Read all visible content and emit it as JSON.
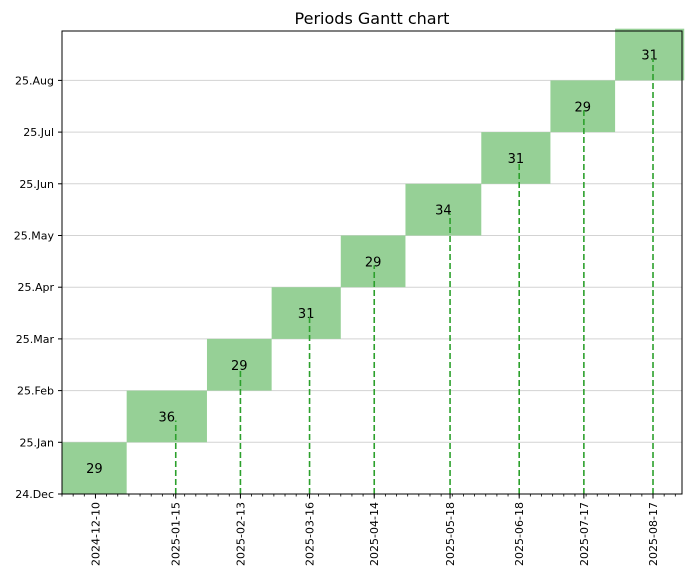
{
  "chart_data": {
    "type": "bar",
    "subtype": "gantt",
    "title": "Periods Gantt chart",
    "xlabel": "",
    "ylabel": "",
    "x_range": [
      "2024-11-25",
      "2025-08-30"
    ],
    "y_categories": [
      "24.Dec",
      "25.Jan",
      "25.Feb",
      "25.Mar",
      "25.Apr",
      "25.May",
      "25.Jun",
      "25.Jul",
      "25.Aug"
    ],
    "x_ticks": [
      "2024-12-10",
      "2025-01-15",
      "2025-02-13",
      "2025-03-16",
      "2025-04-14",
      "2025-05-18",
      "2025-06-18",
      "2025-07-17",
      "2025-08-17"
    ],
    "periods": [
      {
        "category": "24.Dec",
        "start": "2024-11-25",
        "end": "2024-12-24",
        "duration": 29
      },
      {
        "category": "25.Jan",
        "start": "2024-12-24",
        "end": "2025-01-29",
        "duration": 36
      },
      {
        "category": "25.Feb",
        "start": "2025-01-29",
        "end": "2025-02-27",
        "duration": 29
      },
      {
        "category": "25.Mar",
        "start": "2025-02-27",
        "end": "2025-03-30",
        "duration": 31
      },
      {
        "category": "25.Apr",
        "start": "2025-03-30",
        "end": "2025-04-28",
        "duration": 29
      },
      {
        "category": "25.May",
        "start": "2025-04-28",
        "end": "2025-06-01",
        "duration": 34
      },
      {
        "category": "25.Jun",
        "start": "2025-06-01",
        "end": "2025-07-02",
        "duration": 31
      },
      {
        "category": "25.Jul",
        "start": "2025-07-02",
        "end": "2025-07-31",
        "duration": 29
      },
      {
        "category": "25.Aug",
        "start": "2025-07-31",
        "end": "2025-08-31",
        "duration": 31
      }
    ],
    "markers": [
      "2025-01-15",
      "2025-02-13",
      "2025-03-16",
      "2025-04-14",
      "2025-05-18",
      "2025-06-18",
      "2025-07-17",
      "2025-08-17"
    ],
    "grid": "horizontal",
    "colors": {
      "bar": "#96d096",
      "marker": "#2ca02c",
      "grid": "#d3d3d3"
    }
  }
}
